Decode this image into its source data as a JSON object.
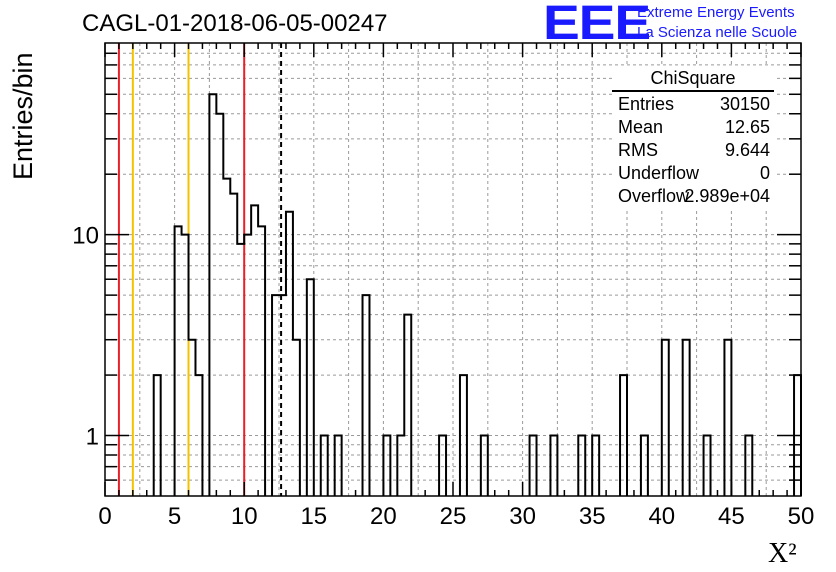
{
  "title": "CAGL-01-2018-06-05-00247",
  "logo": {
    "mark": "EEE",
    "line1": "Extreme Energy Events",
    "line2": "La Scienza nelle Scuole",
    "color": "#1a1aff"
  },
  "stats_box": {
    "title": "ChiSquare",
    "rows": [
      {
        "label": "Entries",
        "value": "30150"
      },
      {
        "label": "Mean",
        "value": "12.65"
      },
      {
        "label": "RMS",
        "value": "9.644"
      },
      {
        "label": "Underflow",
        "value": "0"
      },
      {
        "label": "Overflow",
        "value": "2.989e+04"
      }
    ]
  },
  "chart_data": {
    "type": "histogram",
    "ylabel": "Entries/bin",
    "xlabel": "X²",
    "xlim": [
      0,
      50
    ],
    "ylim": [
      0.5,
      90
    ],
    "yscale": "log",
    "bin_width": 1,
    "x_ticks": [
      0,
      5,
      10,
      15,
      20,
      25,
      30,
      35,
      40,
      45,
      50
    ],
    "y_tick_labels": [
      {
        "value": 1,
        "label": "1"
      },
      {
        "value": 10,
        "label": "10"
      }
    ],
    "grid": true,
    "bins": [
      {
        "x": 3.5,
        "y": 2
      },
      {
        "x": 5,
        "y": 11
      },
      {
        "x": 5.5,
        "y": 10
      },
      {
        "x": 6,
        "y": 3
      },
      {
        "x": 6.5,
        "y": 2
      },
      {
        "x": 7.5,
        "y": 50
      },
      {
        "x": 8,
        "y": 40
      },
      {
        "x": 8.5,
        "y": 19
      },
      {
        "x": 9,
        "y": 16
      },
      {
        "x": 9.5,
        "y": 9
      },
      {
        "x": 10,
        "y": 10
      },
      {
        "x": 10.5,
        "y": 14
      },
      {
        "x": 11,
        "y": 11
      },
      {
        "x": 12,
        "y": 5
      },
      {
        "x": 12.5,
        "y": 5
      },
      {
        "x": 13,
        "y": 13
      },
      {
        "x": 13.5,
        "y": 3
      },
      {
        "x": 14.5,
        "y": 6
      },
      {
        "x": 15.5,
        "y": 1
      },
      {
        "x": 16.5,
        "y": 1
      },
      {
        "x": 18.5,
        "y": 5
      },
      {
        "x": 20,
        "y": 1
      },
      {
        "x": 21,
        "y": 1
      },
      {
        "x": 21.5,
        "y": 4
      },
      {
        "x": 24,
        "y": 1
      },
      {
        "x": 25.5,
        "y": 2
      },
      {
        "x": 27,
        "y": 1
      },
      {
        "x": 30.5,
        "y": 1
      },
      {
        "x": 32,
        "y": 1
      },
      {
        "x": 34,
        "y": 1
      },
      {
        "x": 35,
        "y": 1
      },
      {
        "x": 37,
        "y": 2
      },
      {
        "x": 38.5,
        "y": 1
      },
      {
        "x": 40,
        "y": 3
      },
      {
        "x": 41.5,
        "y": 3
      },
      {
        "x": 43,
        "y": 1
      },
      {
        "x": 44.5,
        "y": 3
      },
      {
        "x": 46,
        "y": 1
      },
      {
        "x": 49.5,
        "y": 2
      }
    ],
    "marker_lines": [
      {
        "x": 1,
        "color": "#e8202a",
        "style": "solid"
      },
      {
        "x": 2,
        "color": "#f5c200",
        "style": "solid"
      },
      {
        "x": 6,
        "color": "#f5c200",
        "style": "solid"
      },
      {
        "x": 10,
        "color": "#e8202a",
        "style": "solid"
      },
      {
        "x": 12.65,
        "color": "#000000",
        "style": "dashed"
      }
    ]
  }
}
